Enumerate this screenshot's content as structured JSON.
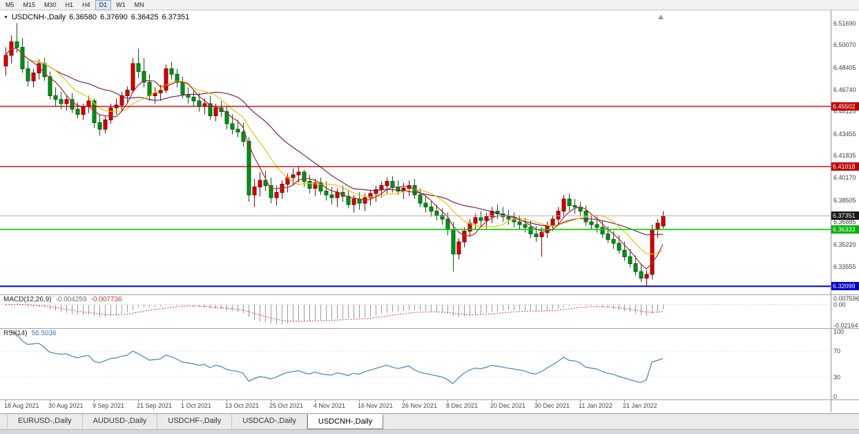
{
  "toolbar": {
    "timeframes": [
      {
        "label": "M5",
        "active": false
      },
      {
        "label": "M15",
        "active": false
      },
      {
        "label": "M30",
        "active": false
      },
      {
        "label": "H1",
        "active": false
      },
      {
        "label": "H4",
        "active": false
      },
      {
        "label": "D1",
        "active": true
      },
      {
        "label": "W1",
        "active": false
      },
      {
        "label": "MN",
        "active": false
      }
    ]
  },
  "icons": {
    "dropdown_glyph": "▼"
  },
  "header": {
    "symbol_period": "USDCNH-,Daily",
    "open": "6.36580",
    "high": "6.37690",
    "low": "6.36425",
    "close": "6.37351"
  },
  "chart_data": {
    "type": "candlestick",
    "symbol": "USDCNH-",
    "timeframe": "Daily",
    "price_scale": {
      "top": 6.526,
      "bottom": 6.316
    },
    "colors": {
      "bull": "#D40000",
      "bull_border": "#7F0000",
      "bear": "#009218",
      "bear_border": "#005C0E",
      "current_line": "#ABABAB"
    },
    "moving_averages": [
      {
        "period": 5,
        "color": "#B22438"
      },
      {
        "period": 10,
        "color": "#E8C300"
      },
      {
        "period": 20,
        "color": "#73215F"
      }
    ],
    "levels": [
      {
        "label": "6.45502",
        "value": 6.45502,
        "line_color": "#C00000",
        "badge_color": "#C00000",
        "weight": 1.4
      },
      {
        "label": "6.41018",
        "value": 6.41018,
        "line_color": "#C00000",
        "badge_color": "#C00000",
        "weight": 1.4
      },
      {
        "label": "6.36333",
        "value": 6.36333,
        "line_color": "#00CE00",
        "badge_color": "#00B400",
        "weight": 1.6
      },
      {
        "label": "6.32099",
        "value": 6.32099,
        "line_color": "#0000C8",
        "badge_color": "#0000C8",
        "weight": 2
      }
    ],
    "current_price": {
      "label": "6.37351",
      "value": 6.37351,
      "badge_color": "#16161A"
    },
    "y_axis": [
      {
        "label": "6.51690",
        "value": 6.5169
      },
      {
        "label": "6.50070",
        "value": 6.5007
      },
      {
        "label": "6.48405",
        "value": 6.48405
      },
      {
        "label": "6.46740",
        "value": 6.4674
      },
      {
        "label": "6.45120",
        "value": 6.4512
      },
      {
        "label": "6.43455",
        "value": 6.43455
      },
      {
        "label": "6.41835",
        "value": 6.41835
      },
      {
        "label": "6.40170",
        "value": 6.4017
      },
      {
        "label": "6.38505",
        "value": 6.38505
      },
      {
        "label": "6.36885",
        "value": 6.36885
      },
      {
        "label": "6.35220",
        "value": 6.3522
      },
      {
        "label": "6.33555",
        "value": 6.33555
      }
    ],
    "x_labels": [
      {
        "label": "18 Aug 2021",
        "index": 0
      },
      {
        "label": "30 Aug 2021",
        "index": 8
      },
      {
        "label": "9 Sep 2021",
        "index": 16
      },
      {
        "label": "21 Sep 2021",
        "index": 24
      },
      {
        "label": "1 Oct 2021",
        "index": 32
      },
      {
        "label": "13 Oct 2021",
        "index": 40
      },
      {
        "label": "25 Oct 2021",
        "index": 48
      },
      {
        "label": "4 Nov 2021",
        "index": 56
      },
      {
        "label": "16 Nov 2021",
        "index": 64
      },
      {
        "label": "26 Nov 2021",
        "index": 72
      },
      {
        "label": "8 Dec 2021",
        "index": 80
      },
      {
        "label": "20 Dec 2021",
        "index": 88
      },
      {
        "label": "30 Dec 2021",
        "index": 96
      },
      {
        "label": "11 Jan 2022",
        "index": 104
      },
      {
        "label": "21 Jan 2022",
        "index": 112
      }
    ],
    "candles": [
      [
        6.485,
        6.499,
        6.478,
        6.493
      ],
      [
        6.493,
        6.508,
        6.487,
        6.503
      ],
      [
        6.503,
        6.5169,
        6.495,
        6.499
      ],
      [
        6.499,
        6.506,
        6.48,
        6.483
      ],
      [
        6.483,
        6.489,
        6.47,
        6.474
      ],
      [
        6.474,
        6.483,
        6.469,
        6.48
      ],
      [
        6.48,
        6.49,
        6.475,
        6.487
      ],
      [
        6.487,
        6.491,
        6.474,
        6.477
      ],
      [
        6.477,
        6.481,
        6.46,
        6.463
      ],
      [
        6.463,
        6.469,
        6.455,
        6.46
      ],
      [
        6.46,
        6.466,
        6.453,
        6.457
      ],
      [
        6.457,
        6.463,
        6.452,
        6.46
      ],
      [
        6.46,
        6.465,
        6.45,
        6.453
      ],
      [
        6.453,
        6.458,
        6.446,
        6.449
      ],
      [
        6.449,
        6.457,
        6.445,
        6.455
      ],
      [
        6.455,
        6.463,
        6.45,
        6.459
      ],
      [
        6.459,
        6.461,
        6.439,
        6.443
      ],
      [
        6.443,
        6.449,
        6.433,
        6.438
      ],
      [
        6.438,
        6.448,
        6.435,
        6.445
      ],
      [
        6.445,
        6.457,
        6.442,
        6.454
      ],
      [
        6.454,
        6.461,
        6.449,
        6.456
      ],
      [
        6.456,
        6.466,
        6.452,
        6.463
      ],
      [
        6.463,
        6.47,
        6.457,
        6.467
      ],
      [
        6.467,
        6.491,
        6.465,
        6.487
      ],
      [
        6.487,
        6.498,
        6.476,
        6.481
      ],
      [
        6.481,
        6.491,
        6.469,
        6.473
      ],
      [
        6.473,
        6.479,
        6.459,
        6.463
      ],
      [
        6.463,
        6.469,
        6.457,
        6.465
      ],
      [
        6.465,
        6.471,
        6.459,
        6.467
      ],
      [
        6.467,
        6.486,
        6.465,
        6.483
      ],
      [
        6.483,
        6.488,
        6.475,
        6.479
      ],
      [
        6.479,
        6.483,
        6.469,
        6.473
      ],
      [
        6.473,
        6.477,
        6.461,
        6.464
      ],
      [
        6.464,
        6.469,
        6.457,
        6.462
      ],
      [
        6.462,
        6.467,
        6.455,
        6.459
      ],
      [
        6.459,
        6.465,
        6.451,
        6.455
      ],
      [
        6.455,
        6.461,
        6.449,
        6.457
      ],
      [
        6.457,
        6.463,
        6.445,
        6.448
      ],
      [
        6.448,
        6.457,
        6.444,
        6.454
      ],
      [
        6.454,
        6.459,
        6.447,
        6.451
      ],
      [
        6.451,
        6.455,
        6.438,
        6.442
      ],
      [
        6.442,
        6.449,
        6.434,
        6.438
      ],
      [
        6.438,
        6.445,
        6.432,
        6.436
      ],
      [
        6.436,
        6.443,
        6.425,
        6.429
      ],
      [
        6.429,
        6.432,
        6.384,
        6.389
      ],
      [
        6.389,
        6.401,
        6.38,
        6.395
      ],
      [
        6.395,
        6.406,
        6.388,
        6.4
      ],
      [
        6.4,
        6.407,
        6.392,
        6.396
      ],
      [
        6.396,
        6.402,
        6.383,
        6.387
      ],
      [
        6.387,
        6.396,
        6.381,
        6.391
      ],
      [
        6.391,
        6.4,
        6.386,
        6.397
      ],
      [
        6.397,
        6.405,
        6.391,
        6.402
      ],
      [
        6.402,
        6.409,
        6.396,
        6.404
      ],
      [
        6.404,
        6.41,
        6.398,
        6.406
      ],
      [
        6.406,
        6.408,
        6.395,
        6.399
      ],
      [
        6.399,
        6.404,
        6.39,
        6.394
      ],
      [
        6.394,
        6.401,
        6.388,
        6.398
      ],
      [
        6.398,
        6.402,
        6.389,
        6.392
      ],
      [
        6.392,
        6.399,
        6.385,
        6.389
      ],
      [
        6.389,
        6.395,
        6.382,
        6.387
      ],
      [
        6.387,
        6.394,
        6.38,
        6.391
      ],
      [
        6.391,
        6.396,
        6.384,
        6.388
      ],
      [
        6.388,
        6.393,
        6.379,
        6.382
      ],
      [
        6.382,
        6.389,
        6.376,
        6.386
      ],
      [
        6.386,
        6.391,
        6.378,
        6.383
      ],
      [
        6.383,
        6.39,
        6.377,
        6.387
      ],
      [
        6.387,
        6.393,
        6.381,
        6.39
      ],
      [
        6.39,
        6.396,
        6.384,
        6.393
      ],
      [
        6.393,
        6.399,
        6.387,
        6.396
      ],
      [
        6.396,
        6.402,
        6.39,
        6.399
      ],
      [
        6.399,
        6.403,
        6.391,
        6.395
      ],
      [
        6.395,
        6.4,
        6.389,
        6.392
      ],
      [
        6.392,
        6.398,
        6.386,
        6.394
      ],
      [
        6.394,
        6.4,
        6.388,
        6.396
      ],
      [
        6.396,
        6.401,
        6.386,
        6.389
      ],
      [
        6.389,
        6.394,
        6.38,
        6.383
      ],
      [
        6.383,
        6.388,
        6.376,
        6.38
      ],
      [
        6.38,
        6.385,
        6.373,
        6.377
      ],
      [
        6.377,
        6.382,
        6.37,
        6.374
      ],
      [
        6.374,
        6.379,
        6.367,
        6.371
      ],
      [
        6.371,
        6.376,
        6.359,
        6.363
      ],
      [
        6.363,
        6.369,
        6.332,
        6.345
      ],
      [
        6.345,
        6.357,
        6.341,
        6.354
      ],
      [
        6.354,
        6.365,
        6.35,
        6.362
      ],
      [
        6.362,
        6.371,
        6.358,
        6.368
      ],
      [
        6.368,
        6.375,
        6.363,
        6.372
      ],
      [
        6.372,
        6.377,
        6.366,
        6.37
      ],
      [
        6.37,
        6.376,
        6.364,
        6.373
      ],
      [
        6.373,
        6.38,
        6.368,
        6.377
      ],
      [
        6.377,
        6.382,
        6.371,
        6.375
      ],
      [
        6.375,
        6.38,
        6.369,
        6.373
      ],
      [
        6.373,
        6.378,
        6.367,
        6.371
      ],
      [
        6.371,
        6.376,
        6.365,
        6.369
      ],
      [
        6.369,
        6.374,
        6.363,
        6.367
      ],
      [
        6.367,
        6.372,
        6.361,
        6.365
      ],
      [
        6.365,
        6.37,
        6.357,
        6.36
      ],
      [
        6.36,
        6.366,
        6.354,
        6.358
      ],
      [
        6.358,
        6.365,
        6.343,
        6.361
      ],
      [
        6.361,
        6.369,
        6.357,
        6.366
      ],
      [
        6.366,
        6.374,
        6.362,
        6.371
      ],
      [
        6.371,
        6.38,
        6.367,
        6.377
      ],
      [
        6.377,
        6.389,
        6.373,
        6.386
      ],
      [
        6.386,
        6.39,
        6.377,
        6.381
      ],
      [
        6.381,
        6.386,
        6.375,
        6.38
      ],
      [
        6.38,
        6.384,
        6.373,
        6.377
      ],
      [
        6.377,
        6.381,
        6.366,
        6.369
      ],
      [
        6.369,
        6.374,
        6.363,
        6.367
      ],
      [
        6.367,
        6.373,
        6.361,
        6.365
      ],
      [
        6.365,
        6.37,
        6.357,
        6.36
      ],
      [
        6.36,
        6.366,
        6.353,
        6.356
      ],
      [
        6.356,
        6.362,
        6.349,
        6.353
      ],
      [
        6.353,
        6.359,
        6.345,
        6.348
      ],
      [
        6.348,
        6.354,
        6.34,
        6.343
      ],
      [
        6.343,
        6.349,
        6.335,
        6.338
      ],
      [
        6.338,
        6.344,
        6.329,
        6.332
      ],
      [
        6.332,
        6.338,
        6.324,
        6.327
      ],
      [
        6.327,
        6.333,
        6.321,
        6.33
      ],
      [
        6.33,
        6.367,
        6.326,
        6.363
      ],
      [
        6.363,
        6.371,
        6.357,
        6.368
      ],
      [
        6.3658,
        6.3769,
        6.36425,
        6.37351
      ]
    ]
  },
  "macd": {
    "name": "MACD(12,26,9)",
    "value": "-0.004259",
    "signal_value": "-0.007736",
    "axis": {
      "max_label": "0.007596",
      "zero_label": "0.00",
      "min_label": "-0.02164"
    },
    "range": {
      "max": 0.0076,
      "min": -0.0216
    },
    "colors": {
      "histogram": "#9A9A9A",
      "signal": "#C04040"
    }
  },
  "rsi": {
    "name": "RSI(14)",
    "value": "56.5036",
    "period": 14,
    "axis_labels": [
      {
        "label": "100",
        "value": 100
      },
      {
        "label": "70",
        "value": 70
      },
      {
        "label": "30",
        "value": 30
      },
      {
        "label": "0",
        "value": 0
      }
    ],
    "level_lines": [
      70,
      30
    ],
    "color": "#4A7EBB"
  },
  "tabs": [
    {
      "label": "EURUSD-,Daily",
      "active": false
    },
    {
      "label": "AUDUSD-,Daily",
      "active": false
    },
    {
      "label": "USDCHF-,Daily",
      "active": false
    },
    {
      "label": "USDCAD-,Daily",
      "active": false
    },
    {
      "label": "USDCNH-,Daily",
      "active": true
    }
  ]
}
